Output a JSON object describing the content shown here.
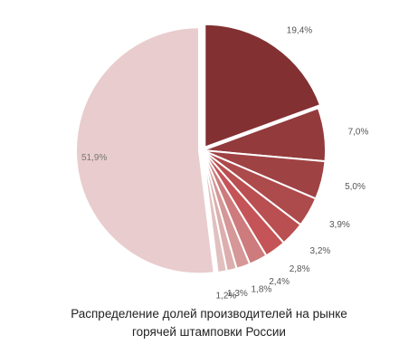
{
  "chart_data": {
    "type": "pie",
    "title_lines": [
      "Распределение долей производителей  на рынке",
      "горячей штамповки России"
    ],
    "slices": [
      {
        "value": 19.4,
        "label": "19,4%",
        "color": "#833033",
        "exploded": true
      },
      {
        "value": 7.0,
        "label": "7,0%",
        "color": "#933a3c",
        "exploded": false
      },
      {
        "value": 5.0,
        "label": "5,0%",
        "color": "#9f4244",
        "exploded": false
      },
      {
        "value": 3.9,
        "label": "3,9%",
        "color": "#ad4a4b",
        "exploded": false
      },
      {
        "value": 3.2,
        "label": "3,2%",
        "color": "#b94f50",
        "exploded": false
      },
      {
        "value": 2.8,
        "label": "2,8%",
        "color": "#c45457",
        "exploded": false
      },
      {
        "value": 2.4,
        "label": "2,4%",
        "color": "#cd7b7c",
        "exploded": false
      },
      {
        "value": 1.8,
        "label": "1,8%",
        "color": "#d59797",
        "exploded": false
      },
      {
        "value": 1.3,
        "label": "1,3%",
        "color": "#dcaeae",
        "exploded": false
      },
      {
        "value": 1.2,
        "label": "1,2%",
        "color": "#e2c0c0",
        "exploded": false
      },
      {
        "value": 51.9,
        "label": "51,9%",
        "color": "#e9cccd",
        "exploded": true
      }
    ],
    "start_angle_deg": 0,
    "direction": "clockwise",
    "legend": "none"
  }
}
